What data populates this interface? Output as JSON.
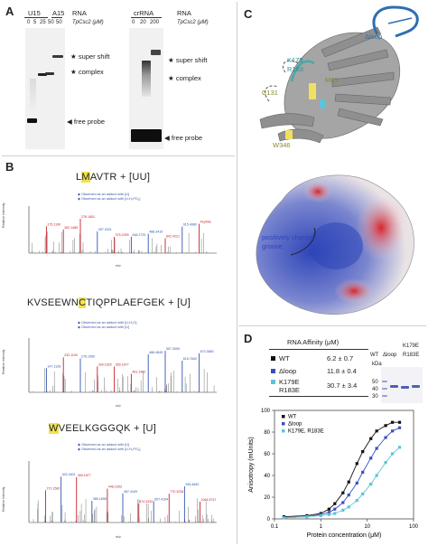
{
  "panels": {
    "A": {
      "letter": "A",
      "gel1": {
        "group_labels": [
          "U15",
          "A15"
        ],
        "rna_label": "RNA",
        "protein_label": "TpCsc2 (μM)",
        "conc": [
          "0",
          "5",
          "25",
          "50",
          "50"
        ]
      },
      "gel2": {
        "group_label": "crRNA",
        "rna_label": "RNA",
        "protein_label": "TpCsc2 (μM)",
        "conc": [
          "0",
          "20",
          "200"
        ]
      },
      "annot_super_shift": "super shift",
      "annot_complex": "complex",
      "annot_free_probe": "free probe",
      "annot_super_shift_2": "super shift",
      "annot_complex_2": "complex",
      "annot_free_probe_2": "free probe"
    },
    "B": {
      "letter": "B",
      "pep1": {
        "pre": "L",
        "hl": "M",
        "post": "AVTR",
        "suffix": " + [UU]",
        "legend": [
          "Observed as an adduct with [U]",
          "Observed as an adduct with [U-H₂PO₄]"
        ],
        "peaks": [
          "175.1190",
          "262.1485",
          "276.1651",
          "307.0321",
          "375.2399",
          "448.2733",
          "488.3419",
          "802.4221",
          "915.4980",
          "Peptide"
        ]
      },
      "pep2": {
        "pre": "KVSEEWN",
        "hl": "C",
        "post": "TIQPPLAEFGEK",
        "suffix": " + [U]",
        "legend": [
          "Observed as an adduct with [U-H₂O]",
          "Observed as an adduct with [U]"
        ],
        "peaks": [
          "147.1128",
          "232.1190",
          "276.1559",
          "330.1520",
          "359.1877",
          "461.2482",
          "488.4849",
          "557.3059",
          "615.7840",
          "670.3850"
        ]
      },
      "pep3": {
        "pre": "",
        "hl": "W",
        "post": "VEELKGGGQK",
        "suffix": " + [U]",
        "legend": [
          "Observed as an adduct with [U]",
          "Observed as an adduct with [U-H₂PO₄]"
        ],
        "peaks": [
          "271.1582",
          "302.1601",
          "359.1877",
          "385.1898",
          "448.2353",
          "487.4349",
          "574.3332",
          "657.4154",
          "770.3236",
          "945.4840",
          "1064.5747"
        ]
      },
      "y_axis_label": "Relative Intensity",
      "x_axis_label": "m/z"
    },
    "C": {
      "letter": "C",
      "label_dloop": "Δloop",
      "label_k179": "K179",
      "label_r183": "R183",
      "label_m83": "M83",
      "label_c131": "C131",
      "label_w346": "W346",
      "label_groove_1": "positively charged",
      "label_groove_2": "groove"
    },
    "D": {
      "letter": "D",
      "table": {
        "header": "RNA Affinity (μM)",
        "rows": [
          {
            "name": "WT",
            "value": "6.2 ± 0.7"
          },
          {
            "name": "Δloop",
            "value": "11.8 ± 0.4"
          },
          {
            "name_1": "K179E",
            "name_2": "R183E",
            "value": "30.7 ± 3.4"
          }
        ]
      },
      "gel": {
        "kda_label": "kDa",
        "markers": [
          "50",
          "40",
          "30"
        ],
        "lane_labels": [
          "WT",
          "Δloop"
        ],
        "lane_label_k": "K179E",
        "lane_label_r": "R183E"
      },
      "chart_data": {
        "type": "scatter",
        "xlabel": "Protein concentration (μM)",
        "ylabel": "Anisotropy (mUnits)",
        "x_scale": "log",
        "xlim": [
          0.1,
          100
        ],
        "ylim": [
          0,
          100
        ],
        "x_ticks": [
          "0.1",
          "1",
          "10",
          "100"
        ],
        "y_ticks": [
          "0",
          "20",
          "40",
          "60",
          "80",
          "100"
        ],
        "legend_position": "top-left",
        "series": [
          {
            "name": "WT",
            "color": "#111111",
            "x": [
              0.16,
              0.5,
              1,
              1.5,
              2,
              3,
              4,
              6,
              8,
              12,
              16,
              25,
              35,
              50
            ],
            "y": [
              2,
              3,
              5,
              9,
              14,
              24,
              34,
              51,
              62,
              74,
              81,
              86,
              89,
              89
            ]
          },
          {
            "name": "Δloop",
            "color": "#3a4fbf",
            "x": [
              0.16,
              0.5,
              1,
              1.5,
              2,
              3,
              4,
              6,
              8,
              12,
              16,
              25,
              35,
              50
            ],
            "y": [
              1,
              2,
              4,
              6,
              9,
              15,
              22,
              33,
              43,
              56,
              65,
              75,
              81,
              84
            ]
          },
          {
            "name": "K179E, R183E",
            "color": "#5cc4d8",
            "x": [
              0.16,
              0.5,
              1,
              1.5,
              2,
              3,
              4,
              6,
              8,
              12,
              16,
              25,
              35,
              50
            ],
            "y": [
              1,
              2,
              3,
              4,
              5,
              8,
              11,
              17,
              23,
              32,
              40,
              52,
              60,
              66
            ]
          }
        ]
      }
    }
  }
}
